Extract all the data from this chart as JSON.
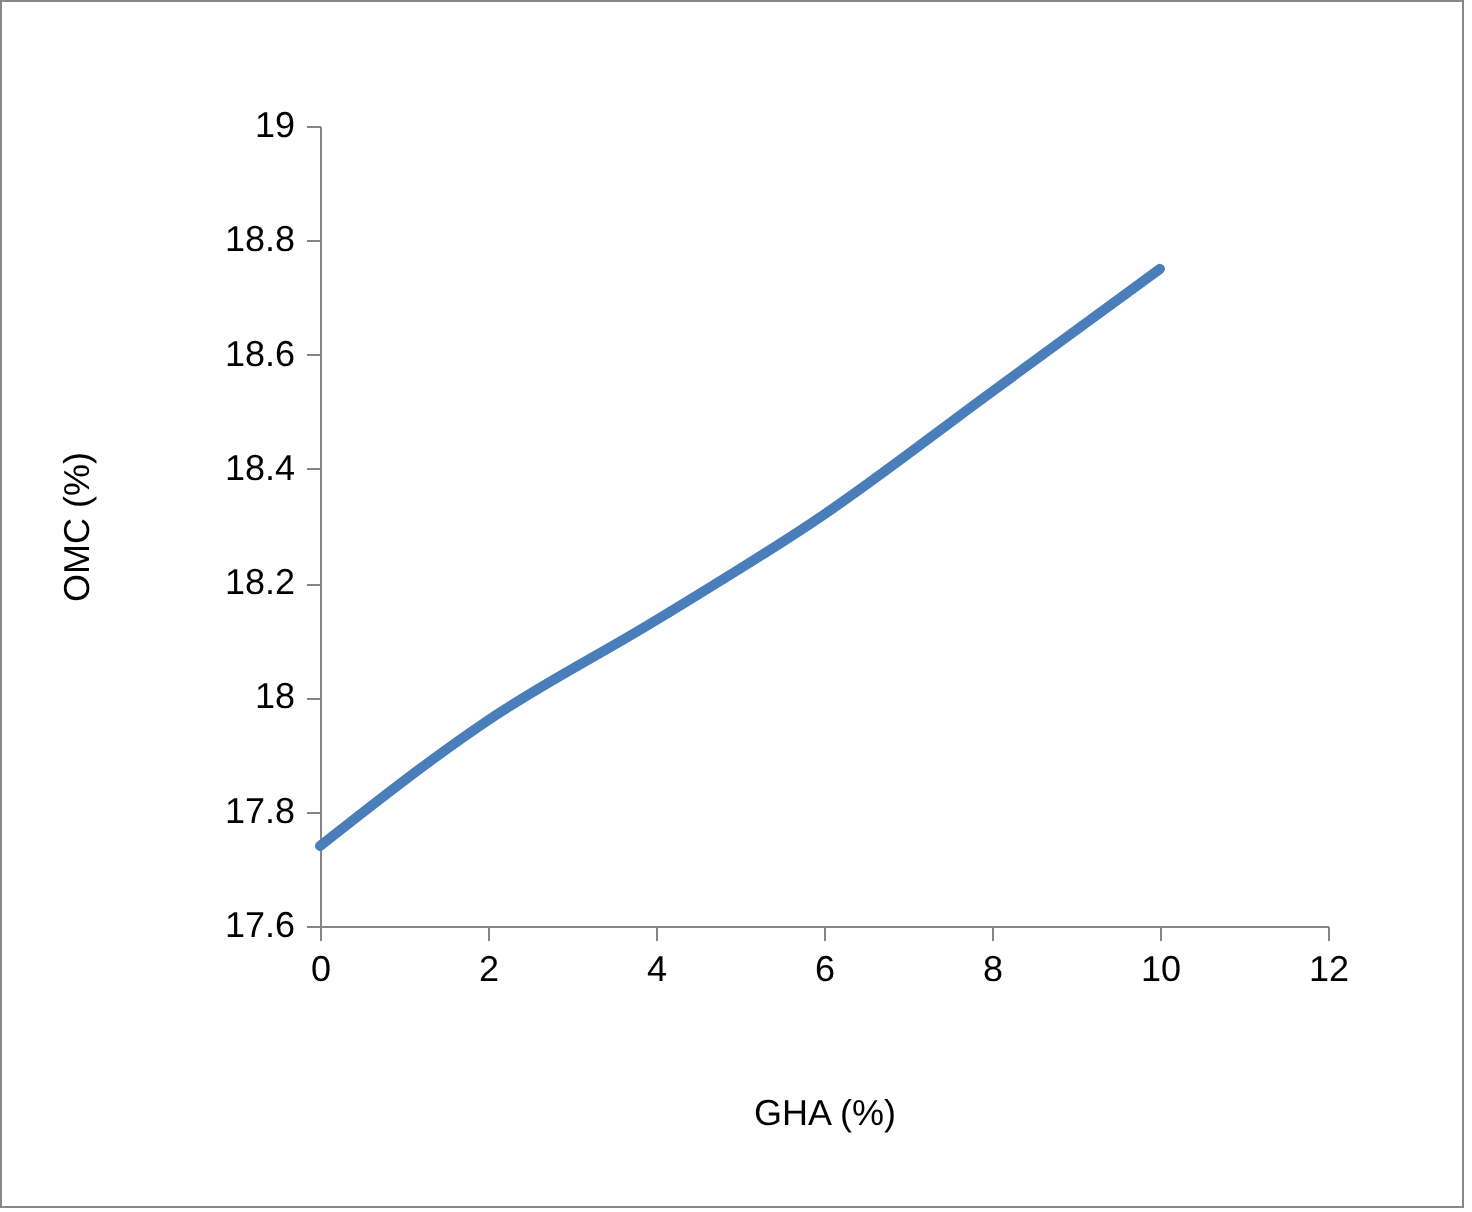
{
  "chart_data": {
    "type": "line",
    "xlabel": "GHA (%)",
    "ylabel": "OMC (%)",
    "x": [
      0,
      2,
      4,
      6,
      8,
      10
    ],
    "series": [
      {
        "color": "#4a7ebb",
        "values": [
          17.74,
          17.96,
          18.135,
          18.32,
          18.535,
          18.75
        ]
      }
    ],
    "xlim": [
      0,
      12
    ],
    "xticks": [
      0,
      2,
      4,
      6,
      8,
      10,
      12
    ],
    "ylim": [
      17.6,
      19
    ],
    "yticks": [
      17.6,
      17.8,
      18,
      18.2,
      18.4,
      18.6,
      18.8,
      19
    ],
    "grid": false,
    "marker": "none",
    "line_style": "solid"
  }
}
